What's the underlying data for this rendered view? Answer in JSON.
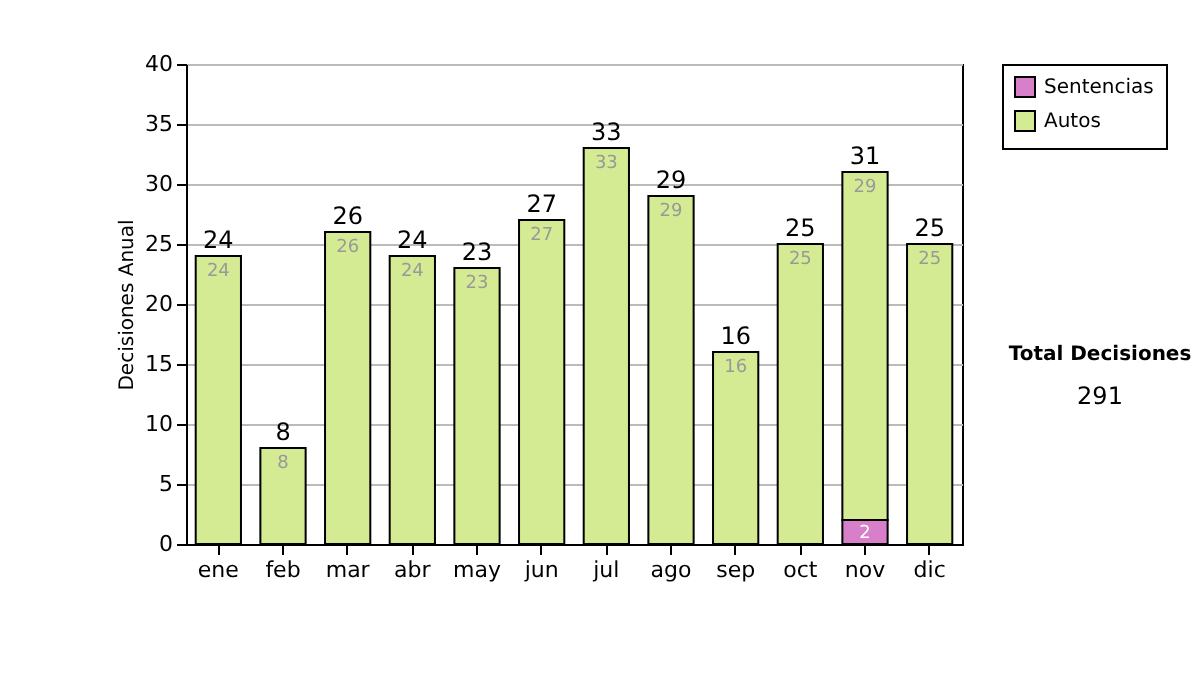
{
  "chart_data": {
    "type": "bar",
    "stacked": true,
    "ylabel": "Decisiones Anual",
    "categories": [
      "ene",
      "feb",
      "mar",
      "abr",
      "may",
      "jun",
      "jul",
      "ago",
      "sep",
      "oct",
      "nov",
      "dic"
    ],
    "series": [
      {
        "name": "Sentencias",
        "color": "#d77fc8",
        "values": [
          0,
          0,
          0,
          0,
          0,
          0,
          0,
          0,
          0,
          0,
          2,
          0
        ],
        "value_labels": [
          null,
          null,
          null,
          null,
          null,
          null,
          null,
          null,
          null,
          null,
          "2",
          null
        ]
      },
      {
        "name": "Autos",
        "color": "#d4eb94",
        "values": [
          24,
          8,
          26,
          24,
          23,
          27,
          33,
          29,
          16,
          25,
          29,
          25
        ],
        "value_labels": [
          "24",
          "8",
          "26",
          "24",
          "23",
          "27",
          "33",
          "29",
          "16",
          "25",
          "29",
          "25"
        ]
      }
    ],
    "totals": [
      "24",
      "8",
      "26",
      "24",
      "23",
      "27",
      "33",
      "29",
      "16",
      "25",
      "31",
      "25"
    ],
    "ylim": [
      0,
      40
    ],
    "yticks": [
      0,
      5,
      10,
      15,
      20,
      25,
      30,
      35,
      40
    ],
    "grid": "y",
    "legend": "right",
    "annotations": [
      "Total Decisiones",
      "291"
    ]
  }
}
